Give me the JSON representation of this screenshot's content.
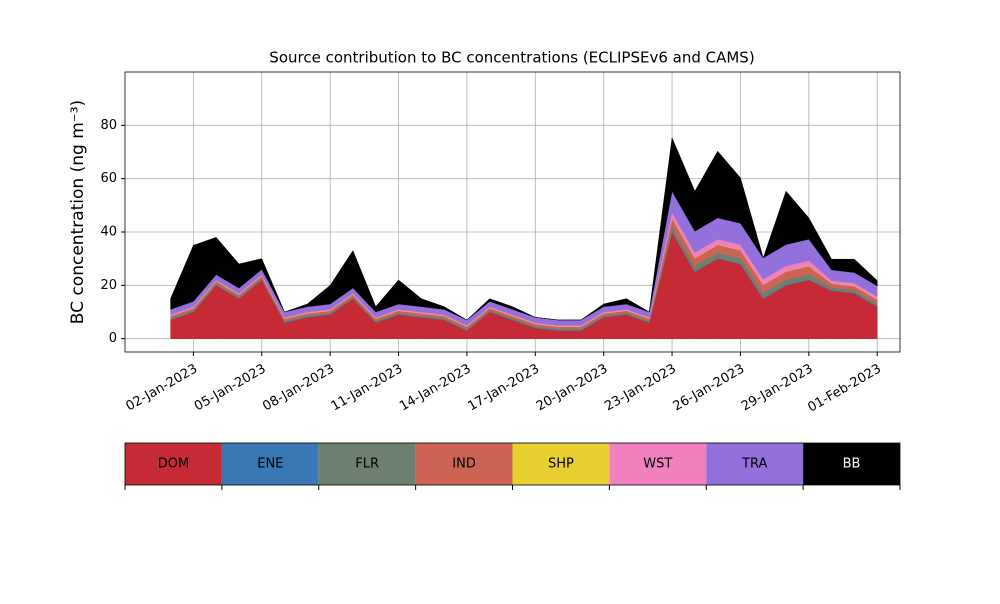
{
  "chart_data": {
    "type": "stacked_area",
    "title": "Source contribution to BC concentrations (ECLIPSEv6 and CAMS)",
    "y_label": "BC concentration (ng m⁻³)",
    "x": [
      "2023-01-01",
      "2023-01-02",
      "2023-01-03",
      "2023-01-04",
      "2023-01-05",
      "2023-01-06",
      "2023-01-07",
      "2023-01-08",
      "2023-01-09",
      "2023-01-10",
      "2023-01-11",
      "2023-01-12",
      "2023-01-13",
      "2023-01-14",
      "2023-01-15",
      "2023-01-16",
      "2023-01-17",
      "2023-01-18",
      "2023-01-19",
      "2023-01-20",
      "2023-01-21",
      "2023-01-22",
      "2023-01-23",
      "2023-01-24",
      "2023-01-25",
      "2023-01-26",
      "2023-01-27",
      "2023-01-28",
      "2023-01-29",
      "2023-01-30",
      "2023-01-31",
      "2023-02-01"
    ],
    "series": [
      {
        "name": "DOM",
        "color": "#c52a35",
        "values": [
          7,
          10,
          20,
          15,
          22,
          6,
          8,
          9,
          15,
          6,
          9,
          8,
          7,
          3,
          10,
          7,
          4,
          3,
          3,
          8,
          9,
          6,
          40,
          25,
          30,
          28,
          15,
          20,
          22,
          18,
          17,
          12
        ]
      },
      {
        "name": "ENE",
        "color": "#3878b4",
        "values": [
          0.2,
          0.2,
          0.2,
          0.2,
          0.2,
          0.2,
          0.2,
          0.2,
          0.2,
          0.2,
          0.2,
          0.2,
          0.2,
          0.2,
          0.2,
          0.2,
          0.2,
          0.2,
          0.2,
          0.2,
          0.2,
          0.2,
          0.2,
          0.2,
          0.2,
          0.2,
          0.2,
          0.2,
          0.2,
          0.2,
          0.2,
          0.2
        ]
      },
      {
        "name": "FLR",
        "color": "#6d8070",
        "values": [
          0.5,
          0.5,
          0.5,
          0.5,
          0.5,
          0.5,
          0.5,
          0.5,
          0.5,
          0.5,
          0.5,
          0.5,
          0.5,
          0.5,
          0.5,
          0.5,
          0.5,
          0.5,
          0.5,
          0.5,
          0.5,
          0.5,
          2,
          2,
          2,
          2,
          2,
          2,
          2,
          1,
          1,
          1
        ]
      },
      {
        "name": "IND",
        "color": "#cb6454",
        "values": [
          0.8,
          0.8,
          0.8,
          0.8,
          0.8,
          0.8,
          0.8,
          0.8,
          0.8,
          0.8,
          0.8,
          0.8,
          0.8,
          0.8,
          0.8,
          0.8,
          0.8,
          0.8,
          0.8,
          0.8,
          0.8,
          0.8,
          3,
          3,
          3,
          3,
          3,
          3,
          3,
          1.5,
          1.5,
          1.5
        ]
      },
      {
        "name": "SHP",
        "color": "#e6cf2e",
        "values": [
          0.1,
          0.1,
          0.1,
          0.1,
          0.1,
          0.1,
          0.1,
          0.1,
          0.1,
          0.1,
          0.1,
          0.1,
          0.1,
          0.1,
          0.1,
          0.1,
          0.1,
          0.1,
          0.1,
          0.1,
          0.1,
          0.1,
          0.1,
          0.1,
          0.1,
          0.1,
          0.1,
          0.1,
          0.1,
          0.1,
          0.1,
          0.1
        ]
      },
      {
        "name": "WST",
        "color": "#f081be",
        "values": [
          0.4,
          0.4,
          0.4,
          0.4,
          0.4,
          0.4,
          0.4,
          0.4,
          0.4,
          0.4,
          0.4,
          0.4,
          0.4,
          0.4,
          0.4,
          0.4,
          0.4,
          0.4,
          0.4,
          0.4,
          0.4,
          0.4,
          2,
          2,
          2,
          2,
          2,
          2,
          2,
          1,
          1,
          1
        ]
      },
      {
        "name": "TRA",
        "color": "#9370db",
        "values": [
          2,
          2,
          2,
          2,
          2,
          2,
          2,
          2,
          2,
          2,
          2,
          2,
          2,
          2,
          2,
          2,
          2,
          2,
          2,
          2,
          2,
          2,
          8,
          8,
          8,
          8,
          8,
          8,
          8,
          4,
          4,
          4
        ]
      },
      {
        "name": "BB",
        "color": "#000000",
        "values": [
          4,
          21,
          14,
          9,
          4,
          0,
          1,
          7,
          14,
          2,
          9,
          3,
          1,
          0,
          1,
          1,
          0,
          0,
          0,
          1,
          2,
          0,
          20,
          15,
          25,
          17,
          0,
          20,
          8,
          4,
          5,
          2
        ]
      }
    ],
    "xlim": [
      "2022-12-30",
      "2023-02-02"
    ],
    "xticks": [
      {
        "value": "2023-01-02",
        "label": "02-Jan-2023"
      },
      {
        "value": "2023-01-05",
        "label": "05-Jan-2023"
      },
      {
        "value": "2023-01-08",
        "label": "08-Jan-2023"
      },
      {
        "value": "2023-01-11",
        "label": "11-Jan-2023"
      },
      {
        "value": "2023-01-14",
        "label": "14-Jan-2023"
      },
      {
        "value": "2023-01-17",
        "label": "17-Jan-2023"
      },
      {
        "value": "2023-01-20",
        "label": "20-Jan-2023"
      },
      {
        "value": "2023-01-23",
        "label": "23-Jan-2023"
      },
      {
        "value": "2023-01-26",
        "label": "26-Jan-2023"
      },
      {
        "value": "2023-01-29",
        "label": "29-Jan-2023"
      },
      {
        "value": "2023-02-01",
        "label": "01-Feb-2023"
      }
    ],
    "ylim": [
      -5,
      100
    ],
    "yticks": [
      0,
      20,
      40,
      60,
      80
    ],
    "grid": true
  }
}
